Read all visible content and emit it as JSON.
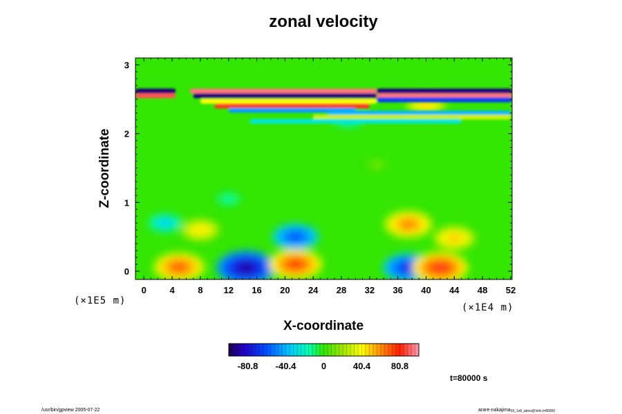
{
  "chart_data": {
    "type": "heatmap",
    "title": "zonal velocity",
    "xlabel": "X-coordinate",
    "ylabel": "Z-coordinate",
    "x_unit": "(×1E4 m)",
    "y_unit": "(×1E5 m)",
    "xlim": [
      -1.2,
      52.2
    ],
    "ylim": [
      -0.12,
      3.1
    ],
    "x_ticks": [
      "0",
      "4",
      "8",
      "12",
      "16",
      "20",
      "24",
      "28",
      "32",
      "36",
      "40",
      "44",
      "48",
      "52"
    ],
    "y_ticks": [
      "0",
      "1",
      "2",
      "3"
    ],
    "colorbar": {
      "min": -101,
      "max": 101,
      "tick_labels": [
        "-80.8",
        "-40.4",
        "0",
        "40.4",
        "80.8"
      ],
      "tick_values": [
        -80.8,
        -40.4,
        0,
        40.4,
        80.8
      ],
      "colormap": "rainbow"
    },
    "features": [
      {
        "x": 5,
        "z": 0.06,
        "value": 75
      },
      {
        "x": 14.5,
        "z": 0.05,
        "value": -95
      },
      {
        "x": 21.5,
        "z": 0.1,
        "value": 80
      },
      {
        "x": 37.5,
        "z": 0.05,
        "value": -75
      },
      {
        "x": 42,
        "z": 0.05,
        "value": 85
      },
      {
        "x": 8,
        "z": 0.6,
        "value": 48
      },
      {
        "x": 3,
        "z": 0.7,
        "value": -35
      },
      {
        "x": 21.5,
        "z": 0.5,
        "value": -65
      },
      {
        "x": 37.5,
        "z": 0.68,
        "value": 68
      },
      {
        "x": 44,
        "z": 0.48,
        "value": 55
      },
      {
        "x": 12,
        "z": 1.05,
        "value": -18
      },
      {
        "x": 33,
        "z": 1.55,
        "value": 12
      },
      {
        "x": 29,
        "z": 2.22,
        "value": -30
      },
      {
        "x": 40,
        "z": 2.42,
        "value": 50
      }
    ],
    "bands": [
      {
        "z": 2.62,
        "x_from": -1.2,
        "x_to": 4.5,
        "value": -95
      },
      {
        "z": 2.55,
        "x_from": -1.2,
        "x_to": 4.5,
        "value": 90
      },
      {
        "z": 2.62,
        "x_from": 6.5,
        "x_to": 33,
        "value": 95
      },
      {
        "z": 2.55,
        "x_from": 7,
        "x_to": 33,
        "value": -95
      },
      {
        "z": 2.47,
        "x_from": 8,
        "x_to": 33,
        "value": 40
      },
      {
        "z": 2.4,
        "x_from": 10,
        "x_to": 32,
        "value": 85
      },
      {
        "z": 2.34,
        "x_from": 12,
        "x_to": 30,
        "value": -45
      },
      {
        "z": 2.62,
        "x_from": 33,
        "x_to": 52.2,
        "value": -95
      },
      {
        "z": 2.55,
        "x_from": 33,
        "x_to": 52.2,
        "value": 95
      },
      {
        "z": 2.49,
        "x_from": 33,
        "x_to": 52.2,
        "value": -65
      },
      {
        "z": 2.3,
        "x_from": 26,
        "x_to": 52,
        "value": -40
      },
      {
        "z": 2.24,
        "x_from": 24,
        "x_to": 52,
        "value": 30
      },
      {
        "z": 2.18,
        "x_from": 15,
        "x_to": 45,
        "value": -25
      }
    ]
  },
  "annotation": {
    "time": "t=80000 s"
  },
  "footer": {
    "left": "/usr/bin/gpview 2005-07-22",
    "right_main": "arare-nakajima",
    "right_sub": "03_1x8_atmo@Velx,t=80000"
  }
}
